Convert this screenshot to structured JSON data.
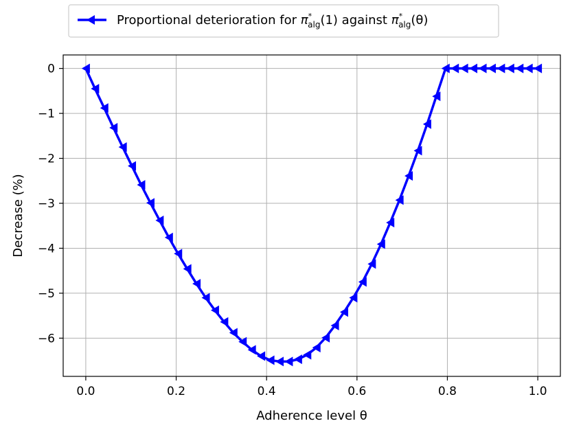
{
  "chart_data": {
    "type": "line",
    "xlabel": "Adherence level θ",
    "ylabel": "Decrease (%)",
    "xlim": [
      -0.05,
      1.05
    ],
    "ylim": [
      -6.85,
      0.3
    ],
    "xticks": [
      0.0,
      0.2,
      0.4,
      0.6,
      0.8,
      1.0
    ],
    "xtick_labels": [
      "0.0",
      "0.2",
      "0.4",
      "0.6",
      "0.8",
      "1.0"
    ],
    "yticks": [
      0,
      -1,
      -2,
      -3,
      -4,
      -5,
      -6
    ],
    "ytick_labels": [
      "0",
      "−1",
      "−2",
      "−3",
      "−4",
      "−5",
      "−6"
    ],
    "grid": true,
    "legend_position": "top-center (outside plot)",
    "series": [
      {
        "name": "Proportional deterioration for π*alg(1) against π*alg(θ)",
        "color": "#0000ff",
        "marker": "triangle-left",
        "x": [
          0.0,
          0.0204,
          0.0408,
          0.0612,
          0.0816,
          0.102,
          0.1224,
          0.1429,
          0.1633,
          0.1837,
          0.2041,
          0.2245,
          0.2449,
          0.2653,
          0.2857,
          0.3061,
          0.3265,
          0.3469,
          0.3673,
          0.3878,
          0.4082,
          0.4286,
          0.449,
          0.4694,
          0.4898,
          0.5102,
          0.5306,
          0.551,
          0.5714,
          0.5918,
          0.6122,
          0.6327,
          0.6531,
          0.6735,
          0.6939,
          0.7143,
          0.7347,
          0.7551,
          0.7755,
          0.7959,
          0.8163,
          0.8367,
          0.8571,
          0.8776,
          0.898,
          0.9184,
          0.9388,
          0.9592,
          0.9796,
          1.0
        ],
        "y": [
          0.0,
          -0.45,
          -0.88,
          -1.32,
          -1.75,
          -2.17,
          -2.59,
          -2.99,
          -3.38,
          -3.76,
          -4.12,
          -4.46,
          -4.79,
          -5.1,
          -5.38,
          -5.64,
          -5.88,
          -6.08,
          -6.26,
          -6.4,
          -6.49,
          -6.52,
          -6.52,
          -6.47,
          -6.37,
          -6.21,
          -5.99,
          -5.72,
          -5.42,
          -5.1,
          -4.75,
          -4.35,
          -3.91,
          -3.43,
          -2.93,
          -2.39,
          -1.83,
          -1.24,
          -0.62,
          0.0,
          0.0,
          0.0,
          0.0,
          0.0,
          0.0,
          0.0,
          0.0,
          0.0,
          0.0,
          0.0
        ]
      }
    ]
  },
  "legend": {
    "label_prefix": "Proportional deterioration for ",
    "pi": "π",
    "star": "*",
    "sub": "alg",
    "arg1": "(1)",
    "middle": " against ",
    "arg2": "(θ)"
  }
}
